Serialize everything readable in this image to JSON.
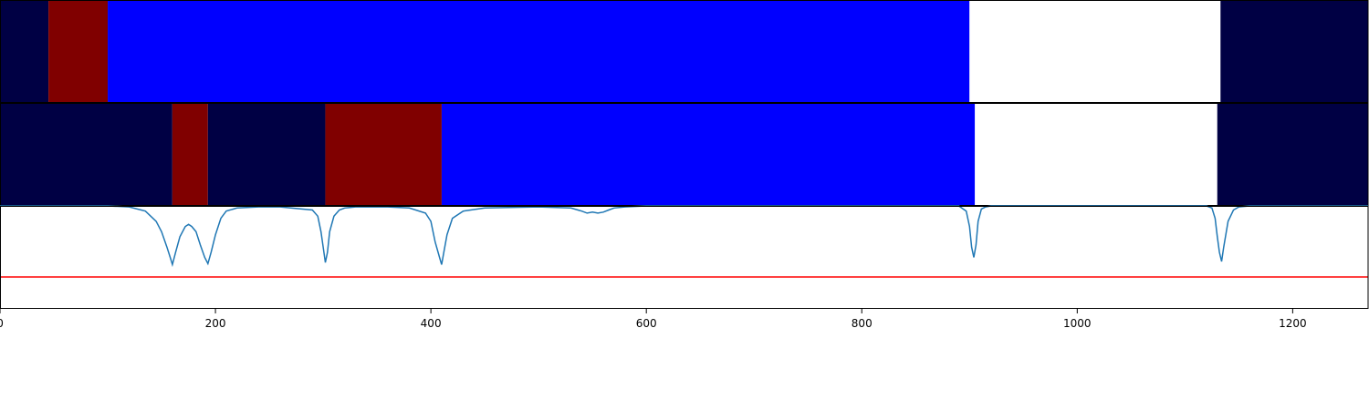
{
  "chart_data": [
    {
      "type": "segmentation-bar",
      "name_hint": "row-1",
      "xlim": [
        0,
        1270
      ],
      "segments": [
        {
          "start": 0,
          "end": 45,
          "color": "#000044"
        },
        {
          "start": 45,
          "end": 100,
          "color": "#800000"
        },
        {
          "start": 100,
          "end": 900,
          "color": "#0000ff"
        },
        {
          "start": 900,
          "end": 1133,
          "color": "#ffffff"
        },
        {
          "start": 1133,
          "end": 1270,
          "color": "#000044"
        }
      ]
    },
    {
      "type": "segmentation-bar",
      "name_hint": "row-2",
      "xlim": [
        0,
        1270
      ],
      "segments": [
        {
          "start": 0,
          "end": 160,
          "color": "#000044"
        },
        {
          "start": 160,
          "end": 193,
          "color": "#800000"
        },
        {
          "start": 193,
          "end": 302,
          "color": "#000044"
        },
        {
          "start": 302,
          "end": 410,
          "color": "#800000"
        },
        {
          "start": 410,
          "end": 905,
          "color": "#0000ff"
        },
        {
          "start": 905,
          "end": 1130,
          "color": "#ffffff"
        },
        {
          "start": 1130,
          "end": 1270,
          "color": "#000044"
        }
      ]
    },
    {
      "type": "line",
      "xlim": [
        0,
        1270
      ],
      "ylim": [
        0,
        1
      ],
      "grid": false,
      "series": [
        {
          "color": "#1f77b4",
          "x": [
            0,
            100,
            120,
            135,
            145,
            150,
            155,
            158,
            160,
            163,
            167,
            172,
            175,
            178,
            182,
            186,
            190,
            193,
            196,
            200,
            205,
            210,
            220,
            240,
            260,
            290,
            295,
            298,
            300,
            302,
            304,
            306,
            310,
            315,
            320,
            330,
            360,
            380,
            395,
            400,
            404,
            408,
            410,
            412,
            415,
            420,
            430,
            450,
            500,
            530,
            540,
            545,
            550,
            555,
            560,
            565,
            570,
            580,
            600,
            700,
            890,
            897,
            900,
            902,
            904,
            906,
            908,
            911,
            915,
            920,
            930,
            1000,
            1120,
            1125,
            1128,
            1130,
            1132,
            1134,
            1136,
            1140,
            1145,
            1150,
            1160,
            1200,
            1270
          ],
          "y": [
            1.0,
            1.0,
            0.99,
            0.95,
            0.85,
            0.75,
            0.6,
            0.5,
            0.43,
            0.55,
            0.7,
            0.8,
            0.82,
            0.8,
            0.75,
            0.62,
            0.5,
            0.44,
            0.55,
            0.72,
            0.88,
            0.95,
            0.98,
            0.99,
            0.99,
            0.96,
            0.9,
            0.75,
            0.6,
            0.45,
            0.55,
            0.75,
            0.9,
            0.96,
            0.98,
            0.99,
            0.99,
            0.98,
            0.93,
            0.85,
            0.65,
            0.5,
            0.43,
            0.55,
            0.72,
            0.88,
            0.95,
            0.98,
            0.99,
            0.98,
            0.95,
            0.93,
            0.94,
            0.93,
            0.94,
            0.96,
            0.98,
            0.99,
            1.0,
            1.0,
            1.0,
            0.95,
            0.8,
            0.6,
            0.5,
            0.62,
            0.85,
            0.97,
            0.99,
            1.0,
            1.0,
            1.0,
            1.0,
            0.98,
            0.88,
            0.7,
            0.55,
            0.46,
            0.6,
            0.85,
            0.96,
            0.99,
            1.0,
            1.0,
            1.0
          ]
        },
        {
          "color": "#ff0000",
          "x": [
            0,
            1270
          ],
          "y": [
            0.31,
            0.31
          ]
        }
      ]
    }
  ],
  "axis": {
    "x_ticks": [
      0,
      200,
      400,
      600,
      800,
      1000,
      1200
    ],
    "x_tick_labels": [
      "0",
      "200",
      "400",
      "600",
      "800",
      "1000",
      "1200"
    ]
  }
}
